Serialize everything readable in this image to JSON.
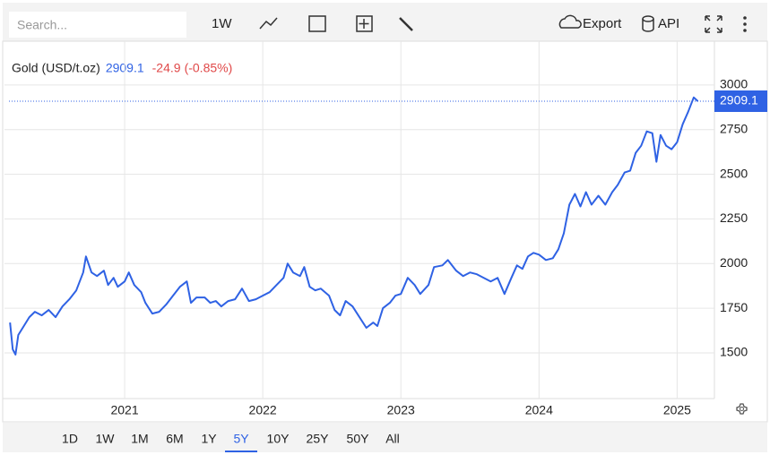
{
  "toolbar": {
    "search_placeholder": "Search...",
    "interval": "1W",
    "export": "Export",
    "api": "API"
  },
  "range_buttons": [
    "1D",
    "1W",
    "1M",
    "6M",
    "1Y",
    "5Y",
    "10Y",
    "25Y",
    "50Y",
    "All"
  ],
  "active_range": 5,
  "chart_data": {
    "type": "line",
    "title": "Gold (USD/t.oz)",
    "last_value": 2909.1,
    "change": "-24.9",
    "change_percent": "(-0.85%)",
    "color": "#2f62e4",
    "x": [
      2020.17,
      2020.19,
      2020.21,
      2020.23,
      2020.27,
      2020.31,
      2020.35,
      2020.4,
      2020.45,
      2020.5,
      2020.55,
      2020.6,
      2020.65,
      2020.7,
      2020.72,
      2020.76,
      2020.8,
      2020.85,
      2020.88,
      2020.92,
      2020.95,
      2021.0,
      2021.03,
      2021.07,
      2021.12,
      2021.15,
      2021.2,
      2021.25,
      2021.3,
      2021.35,
      2021.4,
      2021.45,
      2021.48,
      2021.52,
      2021.58,
      2021.62,
      2021.66,
      2021.7,
      2021.75,
      2021.8,
      2021.85,
      2021.9,
      2021.95,
      2022.0,
      2022.05,
      2022.1,
      2022.15,
      2022.18,
      2022.22,
      2022.27,
      2022.3,
      2022.34,
      2022.38,
      2022.42,
      2022.48,
      2022.52,
      2022.56,
      2022.6,
      2022.65,
      2022.7,
      2022.75,
      2022.8,
      2022.83,
      2022.87,
      2022.92,
      2022.96,
      2023.0,
      2023.05,
      2023.1,
      2023.14,
      2023.2,
      2023.24,
      2023.3,
      2023.34,
      2023.4,
      2023.45,
      2023.5,
      2023.55,
      2023.6,
      2023.65,
      2023.7,
      2023.75,
      2023.8,
      2023.84,
      2023.88,
      2023.92,
      2023.96,
      2024.0,
      2024.05,
      2024.1,
      2024.14,
      2024.18,
      2024.22,
      2024.26,
      2024.3,
      2024.34,
      2024.38,
      2024.43,
      2024.48,
      2024.53,
      2024.57,
      2024.62,
      2024.66,
      2024.7,
      2024.74,
      2024.78,
      2024.82,
      2024.85,
      2024.88,
      2024.92,
      2024.96,
      2025.0,
      2025.04,
      2025.08,
      2025.12,
      2025.15
    ],
    "values": [
      1670,
      1520,
      1490,
      1600,
      1650,
      1700,
      1730,
      1710,
      1740,
      1700,
      1760,
      1800,
      1850,
      1950,
      2040,
      1950,
      1930,
      1960,
      1880,
      1920,
      1870,
      1900,
      1950,
      1880,
      1840,
      1780,
      1720,
      1730,
      1770,
      1820,
      1870,
      1900,
      1780,
      1810,
      1810,
      1780,
      1790,
      1760,
      1790,
      1800,
      1860,
      1790,
      1800,
      1820,
      1840,
      1880,
      1920,
      2000,
      1950,
      1930,
      1980,
      1870,
      1850,
      1860,
      1820,
      1740,
      1710,
      1790,
      1760,
      1700,
      1640,
      1670,
      1650,
      1750,
      1780,
      1820,
      1830,
      1920,
      1880,
      1830,
      1880,
      1980,
      1990,
      2020,
      1960,
      1930,
      1950,
      1940,
      1920,
      1900,
      1920,
      1830,
      1920,
      1990,
      1970,
      2040,
      2060,
      2050,
      2020,
      2030,
      2080,
      2170,
      2330,
      2390,
      2320,
      2400,
      2330,
      2380,
      2330,
      2400,
      2440,
      2510,
      2520,
      2620,
      2660,
      2740,
      2730,
      2570,
      2720,
      2660,
      2640,
      2680,
      2780,
      2850,
      2930,
      2909.1
    ],
    "xlim": [
      2020.13,
      2025.27
    ],
    "xticks": [
      2021,
      2022,
      2023,
      2024,
      2025
    ],
    "ylim": [
      1244,
      3225
    ],
    "yticks": [
      1500,
      1750,
      2000,
      2250,
      2500,
      2750,
      3000
    ],
    "grid": true
  }
}
